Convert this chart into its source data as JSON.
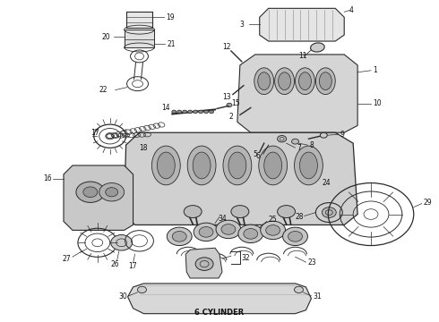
{
  "caption": "6 CYLINDER",
  "caption_fontsize": 6,
  "caption_fontweight": "bold",
  "background_color": "#ffffff",
  "line_color": "#2a2a2a",
  "fig_width": 4.9,
  "fig_height": 3.6,
  "dpi": 100
}
